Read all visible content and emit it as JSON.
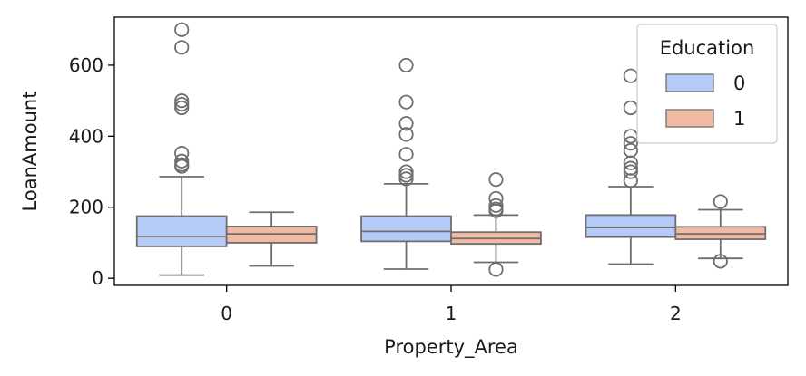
{
  "chart_data": {
    "type": "box",
    "xlabel": "Property_Area",
    "ylabel": "LoanAmount",
    "categories": [
      "0",
      "1",
      "2"
    ],
    "ylim": [
      -20,
      735
    ],
    "yticks": [
      0,
      200,
      400,
      600
    ],
    "grid": false,
    "legend": {
      "title": "Education",
      "placement": "top-right",
      "entries": [
        "0",
        "1"
      ]
    },
    "series": [
      {
        "name": "0",
        "color": "#b3cbf6",
        "boxes": [
          {
            "min": 9,
            "q1": 90,
            "median": 118,
            "q3": 175,
            "max": 286,
            "outliers": [
              700,
              650,
              500,
              490,
              480,
              352,
              330,
              320,
              315
            ]
          },
          {
            "min": 26,
            "q1": 104,
            "median": 132,
            "q3": 175,
            "max": 266,
            "outliers": [
              600,
              496,
              436,
              405,
              349,
              300,
              290,
              280
            ]
          },
          {
            "min": 40,
            "q1": 116,
            "median": 143,
            "q3": 178,
            "max": 258,
            "outliers": [
              570,
              480,
              400,
              380,
              360,
              325,
              310,
              300,
              275
            ]
          }
        ]
      },
      {
        "name": "1",
        "color": "#f0baa3",
        "boxes": [
          {
            "min": 35,
            "q1": 100,
            "median": 125,
            "q3": 146,
            "max": 186,
            "outliers": []
          },
          {
            "min": 45,
            "q1": 97,
            "median": 112,
            "q3": 130,
            "max": 178,
            "outliers": [
              278,
              225,
              205,
              195,
              190,
              25
            ]
          },
          {
            "min": 56,
            "q1": 110,
            "median": 125,
            "q3": 145,
            "max": 193,
            "outliers": [
              216,
              48
            ]
          }
        ]
      }
    ]
  }
}
